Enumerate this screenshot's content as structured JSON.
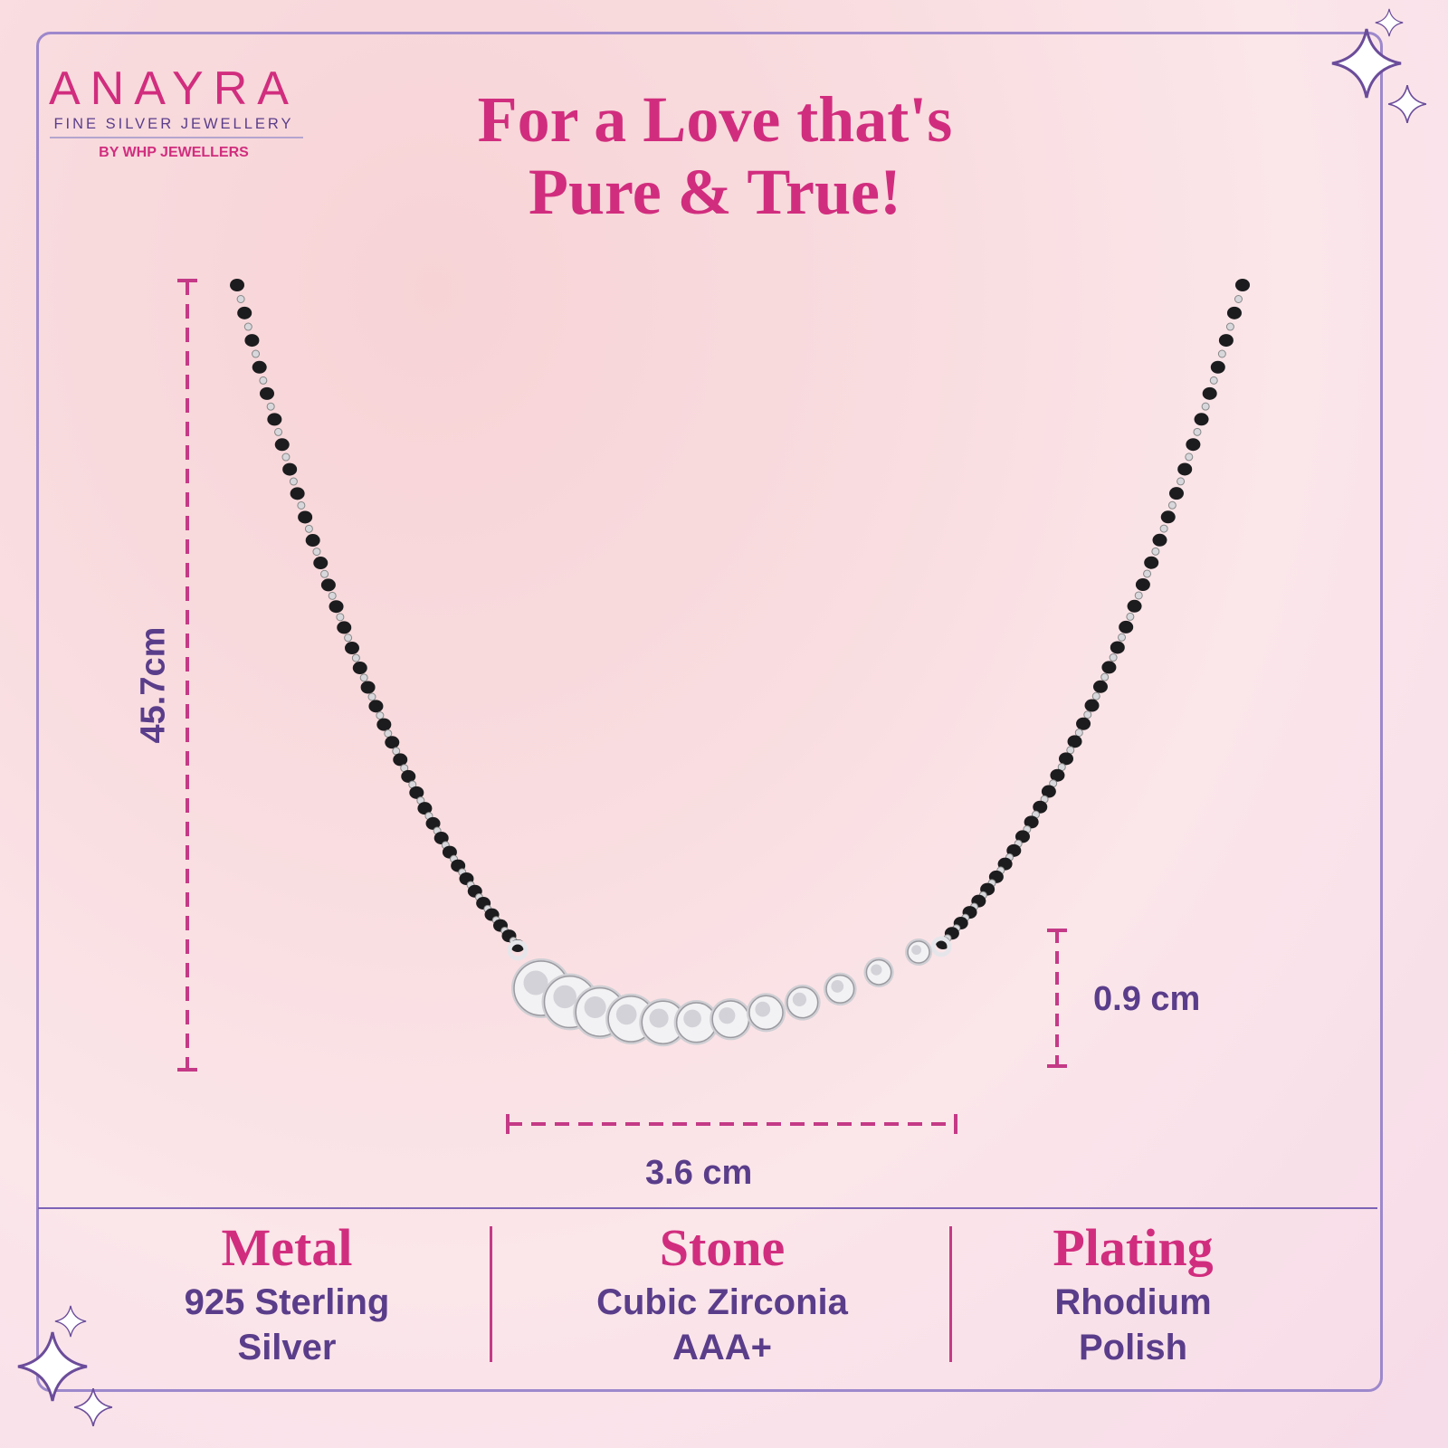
{
  "brand": {
    "name": "ANAYRA",
    "tagline": "FINE SILVER JEWELLERY",
    "by": "BY WHP JEWELLERS"
  },
  "headline": {
    "line1": "For a Love that's",
    "line2": "Pure & True!"
  },
  "dimensions": {
    "length": "45.7cm",
    "pendant_height": "0.9 cm",
    "pendant_width": "3.6 cm"
  },
  "specs": [
    {
      "title": "Metal",
      "line1": "925 Sterling",
      "line2": "Silver"
    },
    {
      "title": "Stone",
      "line1": "Cubic Zirconia",
      "line2": "AAA+"
    },
    {
      "title": "Plating",
      "line1": "Rhodium",
      "line2": "Polish"
    }
  ],
  "colors": {
    "accent_pink": "#d12d7e",
    "accent_purple": "#5a3d8a",
    "frame": "#9d88cc"
  },
  "icons": [
    "sparkle-icon",
    "sparkle-icon"
  ]
}
